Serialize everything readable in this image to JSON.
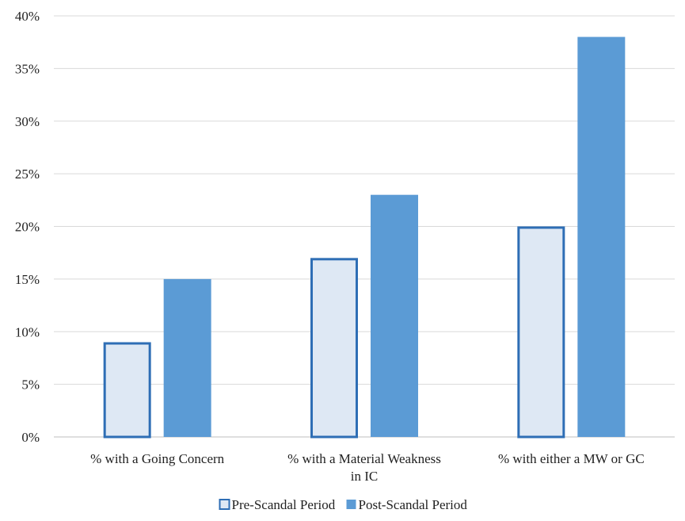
{
  "chart_data": {
    "type": "bar",
    "categories": [
      [
        "% with a Going Concern"
      ],
      [
        "% with a Material Weakness",
        "in IC"
      ],
      [
        "% with either a MW or GC"
      ]
    ],
    "series": [
      {
        "name": "Pre-Scandal Period",
        "values": [
          9,
          17,
          20
        ],
        "fill": "#dee8f4",
        "stroke": "#2e6eb5"
      },
      {
        "name": "Post-Scandal Period",
        "values": [
          15,
          23,
          38
        ],
        "fill": "#5b9bd5",
        "stroke": "#5b9bd5"
      }
    ],
    "y_ticks": [
      "0%",
      "5%",
      "10%",
      "15%",
      "20%",
      "25%",
      "30%",
      "35%",
      "40%"
    ],
    "ylim": [
      0,
      40
    ],
    "y_step": 5,
    "grid": true,
    "legend_position": "bottom-center",
    "title": "",
    "xlabel": "",
    "ylabel": ""
  }
}
